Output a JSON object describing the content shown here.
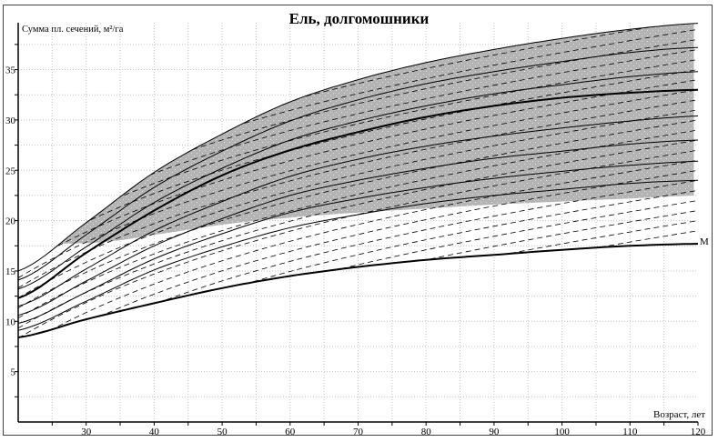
{
  "chart_data": {
    "type": "line",
    "title": "Ель, долгомошники",
    "xlabel": "Возраст, лет",
    "ylabel": "Сумма пл. сечений, м²/га",
    "xlim": [
      20,
      120
    ],
    "ylim": [
      0,
      39.5
    ],
    "x_ticks": [
      30,
      40,
      50,
      60,
      70,
      80,
      90,
      100,
      110,
      120
    ],
    "y_ticks": [
      5,
      10,
      15,
      20,
      25,
      30,
      35
    ],
    "grid": true,
    "x": [
      20,
      30,
      40,
      50,
      60,
      70,
      80,
      90,
      100,
      110,
      120
    ],
    "series": [
      {
        "name": "upper",
        "style": "solid",
        "values": [
          15,
          19.8,
          24.8,
          28.6,
          31.8,
          34,
          35.7,
          37,
          38.1,
          39,
          39.6
        ]
      },
      {
        "name": "curve-2",
        "style": "solid",
        "values": [
          14.1,
          18.6,
          23.3,
          26.9,
          29.9,
          32,
          33.6,
          34.8,
          35.8,
          36.7,
          37.2
        ]
      },
      {
        "name": "curve-3",
        "style": "solid",
        "values": [
          13.2,
          17.4,
          21.8,
          25.2,
          28,
          29.9,
          31.4,
          32.6,
          33.5,
          34.3,
          34.8
        ]
      },
      {
        "name": "mean",
        "style": "thick",
        "values": [
          12.3,
          16.8,
          21,
          24.5,
          27,
          28.8,
          30.3,
          31.4,
          32.2,
          32.7,
          33
        ]
      },
      {
        "name": "curve-5",
        "style": "solid",
        "values": [
          11.5,
          15.2,
          19,
          21.9,
          24.4,
          26.1,
          27.4,
          28.4,
          29.2,
          29.9,
          30.4
        ]
      },
      {
        "name": "curve-6",
        "style": "solid",
        "values": [
          10.6,
          14,
          17.5,
          20.2,
          22.5,
          24,
          25.2,
          26.2,
          26.9,
          27.6,
          28
        ]
      },
      {
        "name": "curve-7",
        "style": "solid",
        "values": [
          9.8,
          12.9,
          16.2,
          18.7,
          20.8,
          22.2,
          23.3,
          24.2,
          24.9,
          25.5,
          25.9
        ]
      },
      {
        "name": "curve-8",
        "style": "solid",
        "values": [
          9.1,
          12,
          15.1,
          17.4,
          19.3,
          20.6,
          21.7,
          22.5,
          23.1,
          23.7,
          24
        ]
      },
      {
        "name": "M",
        "label": "M",
        "style": "thick",
        "values": [
          8.4,
          10.2,
          11.8,
          13.3,
          14.5,
          15.4,
          16.1,
          16.6,
          17.1,
          17.5,
          17.7
        ]
      }
    ],
    "shaded_region": {
      "upper": "upper",
      "lower_x": [
        26.4,
        33,
        40,
        50,
        60,
        70,
        80,
        90,
        100,
        110,
        120
      ],
      "lower_values": [
        17.7,
        17.9,
        18.6,
        19.6,
        20.3,
        20.8,
        21.2,
        21.6,
        21.9,
        22.2,
        22.5
      ]
    },
    "dashed_isolines_value_at_120": [
      19,
      20,
      21,
      22,
      23,
      24,
      25,
      26,
      27,
      28,
      29,
      30,
      31,
      32,
      33,
      34,
      35,
      36,
      37,
      38,
      39,
      40
    ],
    "colors": {
      "line": "#000000",
      "shade": "#b4b4b4",
      "grid": "#c4c4c4"
    }
  }
}
